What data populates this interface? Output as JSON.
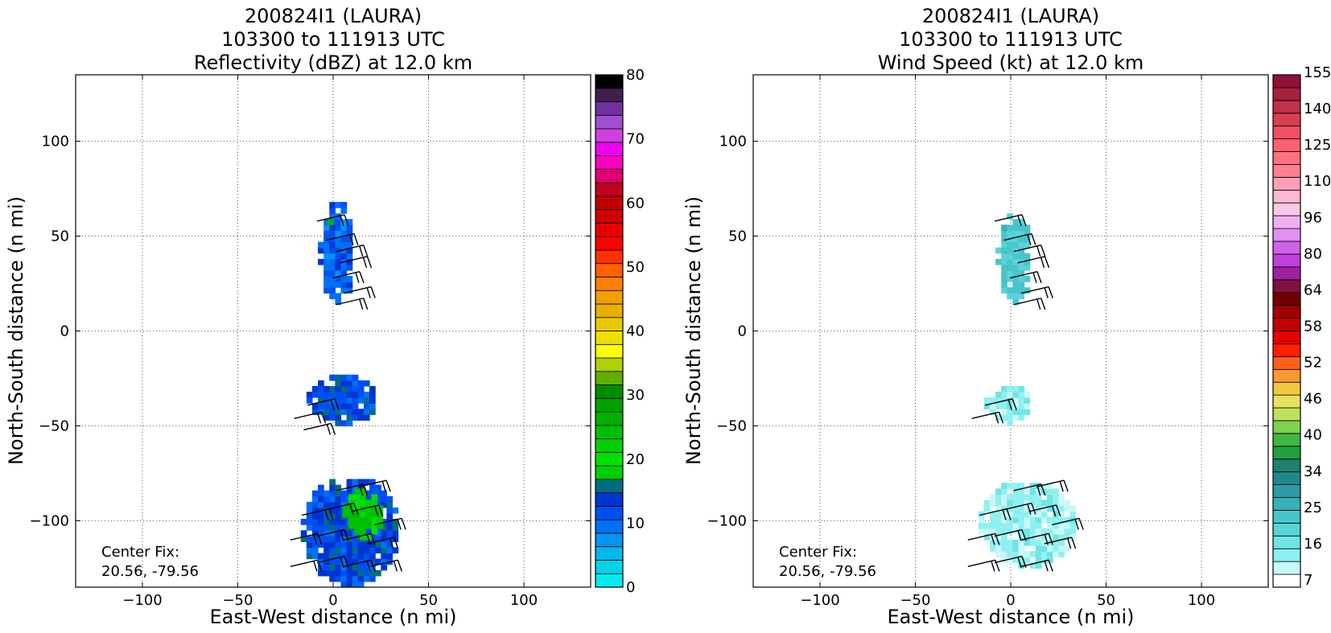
{
  "chart_data": [
    {
      "type": "heatmap",
      "title_lines": [
        "200824I1 (LAURA)",
        "103300 to 111913 UTC",
        "Reflectivity (dBZ) at 12.0 km"
      ],
      "xlabel": "East-West distance (n mi)",
      "ylabel": "North-South distance (n mi)",
      "xlim": [
        -135,
        135
      ],
      "ylim": [
        -135,
        135
      ],
      "xticks": [
        -100,
        -50,
        0,
        50,
        100
      ],
      "yticks": [
        -100,
        -50,
        0,
        50,
        100
      ],
      "xtick_labels": [
        "−100",
        "−50",
        "0",
        "50",
        "100"
      ],
      "ytick_labels": [
        "−100",
        "−50",
        "0",
        "50",
        "100"
      ],
      "grid": true,
      "annotation": [
        "Center Fix:",
        "20.56, -79.56"
      ],
      "colorbar": {
        "tick_values": [
          0,
          10,
          20,
          30,
          40,
          50,
          60,
          70,
          80
        ],
        "tick_labels": [
          "0",
          "10",
          "20",
          "30",
          "40",
          "50",
          "60",
          "70",
          "80"
        ],
        "colors": [
          "#00eeee",
          "#00d5e8",
          "#00b8ee",
          "#0095f5",
          "#0070f5",
          "#0050f0",
          "#0035d5",
          "#006e80",
          "#00d000",
          "#00e000",
          "#00d000",
          "#00c000",
          "#00b000",
          "#00a000",
          "#008c00",
          "#5fb000",
          "#b0d000",
          "#ffff00",
          "#f0e000",
          "#e8c800",
          "#e8b000",
          "#f0a000",
          "#ff8000",
          "#ff6000",
          "#ff3000",
          "#ff0000",
          "#e80000",
          "#d00000",
          "#c00000",
          "#c00020",
          "#e00070",
          "#ff00c0",
          "#f000f0",
          "#d040e0",
          "#a050d0",
          "#7030a0",
          "#402050",
          "#000000"
        ]
      },
      "regions": [
        {
          "x": [
            -8,
            10
          ],
          "y": [
            14,
            66
          ],
          "value": 10
        },
        {
          "x": [
            -3,
            0
          ],
          "y": [
            50,
            62
          ],
          "value": 25
        },
        {
          "x": [
            -14,
            22
          ],
          "y": [
            -50,
            -25
          ],
          "value": 12
        },
        {
          "x": [
            -17,
            33
          ],
          "y": [
            -135,
            -78
          ],
          "value": 12
        },
        {
          "x": [
            5,
            25
          ],
          "y": [
            -110,
            -85
          ],
          "value": 22
        }
      ],
      "barbs": [
        {
          "x": 0,
          "y": 60
        },
        {
          "x": 5,
          "y": 50
        },
        {
          "x": 10,
          "y": 44
        },
        {
          "x": 12,
          "y": 38
        },
        {
          "x": 8,
          "y": 30
        },
        {
          "x": 14,
          "y": 22
        },
        {
          "x": 10,
          "y": 16
        },
        {
          "x": -5,
          "y": -37
        },
        {
          "x": -12,
          "y": -44
        },
        {
          "x": -7,
          "y": -50
        },
        {
          "x": 10,
          "y": -82
        },
        {
          "x": 22,
          "y": -80
        },
        {
          "x": -8,
          "y": -95
        },
        {
          "x": 5,
          "y": -92
        },
        {
          "x": 18,
          "y": -93
        },
        {
          "x": 30,
          "y": -100
        },
        {
          "x": -14,
          "y": -108
        },
        {
          "x": 0,
          "y": -106
        },
        {
          "x": 14,
          "y": -108
        },
        {
          "x": 26,
          "y": -110
        },
        {
          "x": -14,
          "y": -122
        },
        {
          "x": 0,
          "y": -120
        },
        {
          "x": 14,
          "y": -122
        },
        {
          "x": 28,
          "y": -122
        }
      ]
    },
    {
      "type": "heatmap",
      "title_lines": [
        "200824I1 (LAURA)",
        "103300 to 111913 UTC",
        "Wind Speed (kt) at 12.0 km"
      ],
      "xlabel": "East-West distance (n mi)",
      "ylabel": "North-South distance (n mi)",
      "xlim": [
        -135,
        135
      ],
      "ylim": [
        -135,
        135
      ],
      "xticks": [
        -100,
        -50,
        0,
        50,
        100
      ],
      "yticks": [
        -100,
        -50,
        0,
        50,
        100
      ],
      "xtick_labels": [
        "−100",
        "−50",
        "0",
        "50",
        "100"
      ],
      "ytick_labels": [
        "−100",
        "−50",
        "0",
        "50",
        "100"
      ],
      "grid": true,
      "annotation": [
        "Center Fix:",
        "20.56, -79.56"
      ],
      "colorbar": {
        "tick_labels": [
          "7",
          "16",
          "25",
          "34",
          "40",
          "46",
          "52",
          "58",
          "64",
          "80",
          "96",
          "110",
          "125",
          "140",
          "155"
        ],
        "colors": [
          "#ffffff",
          "#c8f8f8",
          "#90f0f0",
          "#70e4e4",
          "#58d4d8",
          "#48c4cc",
          "#38b0b8",
          "#2c9ca8",
          "#20888c",
          "#208070",
          "#20a040",
          "#40b840",
          "#80d050",
          "#c0e060",
          "#e8e060",
          "#f0c840",
          "#ff9830",
          "#ff6020",
          "#ff2000",
          "#e80000",
          "#c00000",
          "#a00000",
          "#700000",
          "#801040",
          "#a020a0",
          "#c040e0",
          "#d060e8",
          "#e090f0",
          "#f0b0f0",
          "#f8c8e8",
          "#ffb8d0",
          "#ffa0b8",
          "#ff8090",
          "#ff7080",
          "#ff6070",
          "#f05060",
          "#d84050",
          "#c03048",
          "#a82040",
          "#901038"
        ]
      },
      "regions": [
        {
          "x": [
            -8,
            10
          ],
          "y": [
            14,
            60
          ],
          "value": 25
        },
        {
          "x": [
            -14,
            10
          ],
          "y": [
            -50,
            -30
          ],
          "value": 15
        },
        {
          "x": [
            -17,
            33
          ],
          "y": [
            -125,
            -80
          ],
          "value": 14
        }
      ],
      "barbs": [
        {
          "x": 0,
          "y": 60
        },
        {
          "x": 5,
          "y": 50
        },
        {
          "x": 10,
          "y": 44
        },
        {
          "x": 12,
          "y": 38
        },
        {
          "x": 8,
          "y": 30
        },
        {
          "x": 14,
          "y": 22
        },
        {
          "x": 10,
          "y": 16
        },
        {
          "x": -5,
          "y": -37
        },
        {
          "x": -12,
          "y": -44
        },
        {
          "x": 10,
          "y": -82
        },
        {
          "x": 22,
          "y": -80
        },
        {
          "x": -8,
          "y": -95
        },
        {
          "x": 5,
          "y": -92
        },
        {
          "x": 18,
          "y": -93
        },
        {
          "x": 30,
          "y": -100
        },
        {
          "x": -14,
          "y": -108
        },
        {
          "x": 0,
          "y": -106
        },
        {
          "x": 14,
          "y": -108
        },
        {
          "x": 26,
          "y": -110
        },
        {
          "x": -14,
          "y": -122
        },
        {
          "x": 0,
          "y": -120
        },
        {
          "x": 14,
          "y": -122
        }
      ]
    }
  ]
}
